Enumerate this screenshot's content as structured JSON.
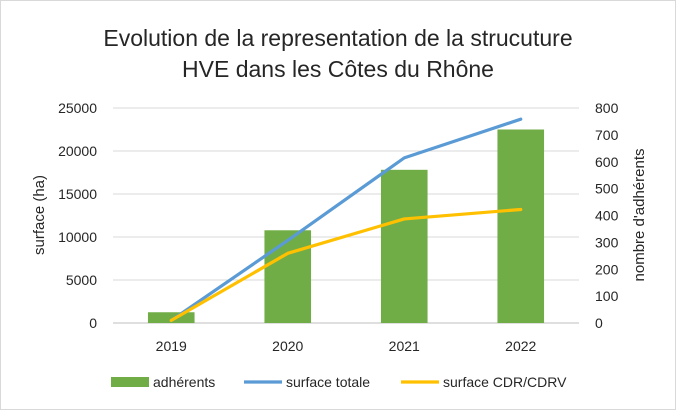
{
  "chart_data": {
    "type": "bar",
    "title_lines": [
      "Evolution de la representation de la strucuture",
      "HVE dans les Côtes du Rhône"
    ],
    "categories": [
      "2019",
      "2020",
      "2021",
      "2022"
    ],
    "ylabel": "surface (ha)",
    "y2label": "nombre d'adhérents",
    "ylim": [
      0,
      25000
    ],
    "y2lim": [
      0,
      800
    ],
    "yticks": [
      "0",
      "5000",
      "10000",
      "15000",
      "20000",
      "25000"
    ],
    "y2ticks": [
      "0",
      "100",
      "200",
      "300",
      "400",
      "500",
      "600",
      "700",
      "800"
    ],
    "grid": true,
    "legend_position": "bottom",
    "series": [
      {
        "name": "adhérents",
        "kind": "bar",
        "axis": "right",
        "color": "#70ad47",
        "values": [
          40,
          345,
          570,
          720
        ]
      },
      {
        "name": "surface totale",
        "kind": "line",
        "axis": "left",
        "color": "#5b9bd5",
        "values": [
          300,
          9600,
          19200,
          23700
        ]
      },
      {
        "name": "surface CDR/CDRV",
        "kind": "line",
        "axis": "left",
        "color": "#ffc000",
        "values": [
          300,
          8100,
          12100,
          13200
        ]
      }
    ]
  }
}
